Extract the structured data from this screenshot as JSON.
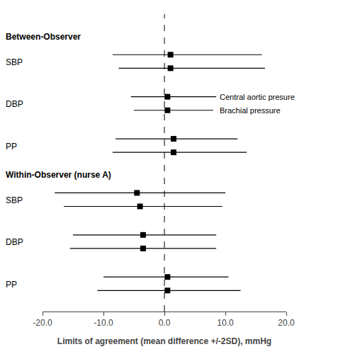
{
  "chart_data": {
    "type": "forest",
    "xlabel": "Limits of agreement (mean difference +/-2SD), mmHg",
    "xlim": [
      -20.0,
      20.0
    ],
    "xticks": [
      {
        "value": -20.0,
        "label": "-20.0"
      },
      {
        "value": -10.0,
        "label": "-10.0"
      },
      {
        "value": 0.0,
        "label": "0.0"
      },
      {
        "value": 10.0,
        "label": "10.0"
      },
      {
        "value": 20.0,
        "label": "20.0"
      }
    ],
    "reference_line_x": 0.0,
    "grid": false,
    "color": "#000000",
    "marker": "square",
    "series": [
      {
        "name": "Central aortic presure"
      },
      {
        "name": "Brachial pressure"
      }
    ],
    "series_label_x": 8.8,
    "series_label_row": {
      "section": "Between-Observer",
      "row": "DBP"
    },
    "sections": [
      {
        "label": "Between-Observer",
        "rows": [
          {
            "label": "SBP",
            "entries": [
              {
                "mean": 1.0,
                "lower": -8.5,
                "upper": 16.0
              },
              {
                "mean": 1.0,
                "lower": -7.5,
                "upper": 16.5
              }
            ]
          },
          {
            "label": "DBP",
            "entries": [
              {
                "mean": 0.5,
                "lower": -5.5,
                "upper": 8.5
              },
              {
                "mean": 0.5,
                "lower": -5.0,
                "upper": 8.0
              }
            ]
          },
          {
            "label": "PP",
            "entries": [
              {
                "mean": 1.5,
                "lower": -8.0,
                "upper": 12.0
              },
              {
                "mean": 1.5,
                "lower": -8.5,
                "upper": 13.5
              }
            ]
          }
        ]
      },
      {
        "label": "Within-Observer (nurse A)",
        "rows": [
          {
            "label": "SBP",
            "entries": [
              {
                "mean": -4.5,
                "lower": -18.0,
                "upper": 10.0
              },
              {
                "mean": -4.0,
                "lower": -16.5,
                "upper": 9.5
              }
            ]
          },
          {
            "label": "DBP",
            "entries": [
              {
                "mean": -3.5,
                "lower": -15.0,
                "upper": 8.5
              },
              {
                "mean": -3.5,
                "lower": -15.5,
                "upper": 8.5
              }
            ]
          },
          {
            "label": "PP",
            "entries": [
              {
                "mean": 0.5,
                "lower": -10.0,
                "upper": 10.5
              },
              {
                "mean": 0.5,
                "lower": -11.0,
                "upper": 12.5
              }
            ]
          }
        ]
      }
    ]
  }
}
